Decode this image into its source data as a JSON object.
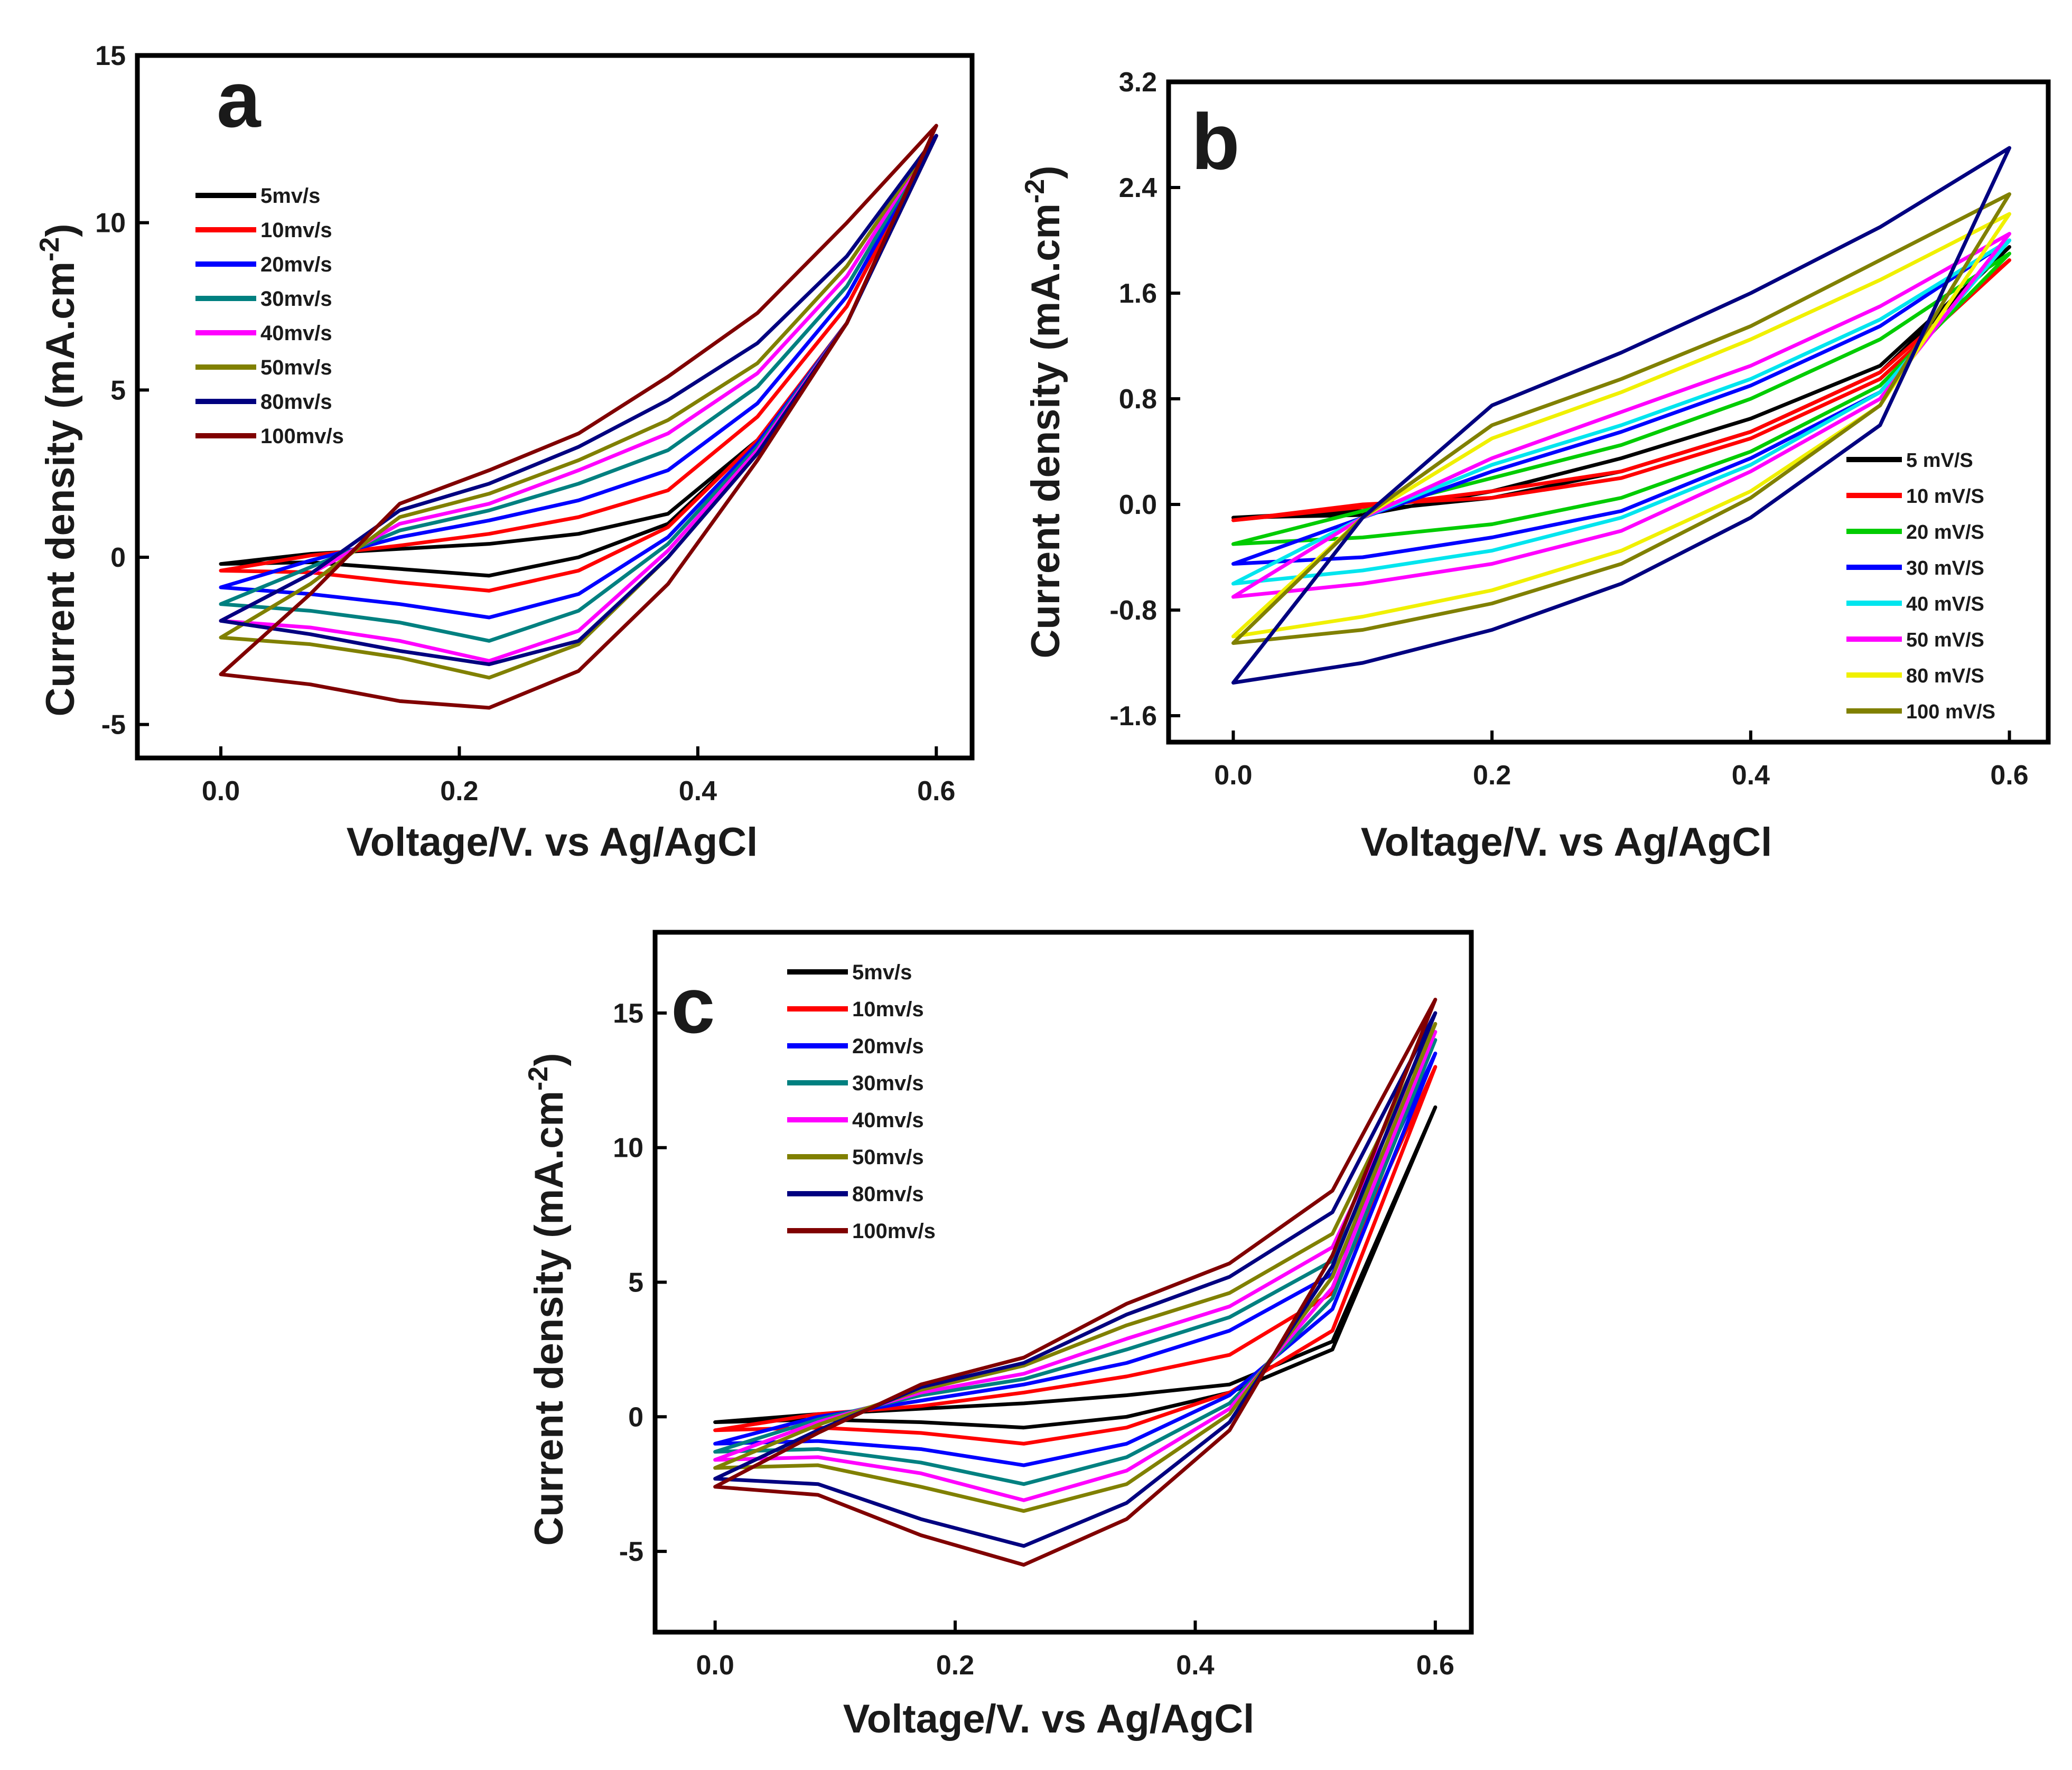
{
  "chart_data": [
    {
      "panel": "a",
      "type": "line",
      "subtype": "cyclic-voltammogram",
      "xlabel": "Voltage/V. vs Ag/AgCl",
      "ylabel_main": "Current density (mA.cm",
      "ylabel_sup": "-2",
      "ylabel_close": ")",
      "xlim": [
        -0.07,
        0.63
      ],
      "ylim": [
        -6,
        15
      ],
      "x_ticks": [
        "0.0",
        "0.2",
        "0.4",
        "0.6"
      ],
      "x_tick_values": [
        0,
        0.2,
        0.4,
        0.6
      ],
      "y_ticks": [
        "-5",
        "0",
        "5",
        "10",
        "15"
      ],
      "y_tick_values": [
        -5,
        0,
        5,
        10,
        15
      ],
      "legend_position": "top-left",
      "series": [
        {
          "name": "5mv/s",
          "color": "#000000",
          "y_lower": [
            -0.2,
            -0.15,
            -0.35,
            -0.55,
            0.0,
            1.0,
            3.5,
            7.0,
            12.6
          ],
          "y_upper": [
            -0.2,
            0.1,
            0.25,
            0.4,
            0.7,
            1.3,
            3.5,
            7.0,
            12.6
          ]
        },
        {
          "name": "10mv/s",
          "color": "#ff0000",
          "y_lower": [
            -0.4,
            -0.45,
            -0.75,
            -1.0,
            -0.4,
            0.9,
            3.5,
            7.0,
            12.6
          ],
          "y_upper": [
            -0.4,
            0.05,
            0.35,
            0.7,
            1.2,
            2.0,
            4.2,
            7.5,
            12.6
          ]
        },
        {
          "name": "20mv/s",
          "color": "#0000ff",
          "y_lower": [
            -0.9,
            -1.1,
            -1.4,
            -1.8,
            -1.1,
            0.6,
            3.4,
            7.0,
            12.6
          ],
          "y_upper": [
            -0.9,
            -0.1,
            0.6,
            1.1,
            1.7,
            2.6,
            4.6,
            7.8,
            12.6
          ]
        },
        {
          "name": "30mv/s",
          "color": "#008080",
          "y_lower": [
            -1.4,
            -1.6,
            -1.95,
            -2.5,
            -1.6,
            0.4,
            3.3,
            7.0,
            12.6
          ],
          "y_upper": [
            -1.4,
            -0.3,
            0.8,
            1.4,
            2.2,
            3.2,
            5.1,
            8.1,
            12.6
          ]
        },
        {
          "name": "40mv/s",
          "color": "#ff00ff",
          "y_lower": [
            -1.9,
            -2.1,
            -2.5,
            -3.1,
            -2.2,
            0.2,
            3.2,
            7.0,
            12.6
          ],
          "y_upper": [
            -1.9,
            -0.5,
            1.0,
            1.6,
            2.6,
            3.7,
            5.5,
            8.4,
            12.6
          ]
        },
        {
          "name": "50mv/s",
          "color": "#808000",
          "y_lower": [
            -2.4,
            -2.6,
            -3.0,
            -3.6,
            -2.6,
            0.0,
            3.1,
            7.0,
            12.6
          ],
          "y_upper": [
            -2.4,
            -0.8,
            1.2,
            1.9,
            2.9,
            4.1,
            5.8,
            8.7,
            12.6
          ]
        },
        {
          "name": "80mv/s",
          "color": "#000080",
          "y_lower": [
            -1.9,
            -2.3,
            -2.8,
            -3.2,
            -2.5,
            0.0,
            3.1,
            7.0,
            12.6
          ],
          "y_upper": [
            -1.9,
            -0.5,
            1.4,
            2.2,
            3.3,
            4.7,
            6.4,
            9.0,
            12.6
          ]
        },
        {
          "name": "100mv/s",
          "color": "#800000",
          "y_lower": [
            -3.5,
            -3.8,
            -4.3,
            -4.5,
            -3.4,
            -0.8,
            2.9,
            7.0,
            12.9
          ],
          "y_upper": [
            -3.5,
            -1.1,
            1.6,
            2.6,
            3.7,
            5.4,
            7.3,
            10.0,
            12.9
          ]
        }
      ]
    },
    {
      "panel": "b",
      "type": "line",
      "subtype": "cyclic-voltammogram",
      "xlabel": "Voltage/V. vs Ag/AgCl",
      "ylabel_main": "Current density (mA.cm",
      "ylabel_sup": "-2",
      "ylabel_close": ")",
      "xlim": [
        -0.05,
        0.63
      ],
      "ylim": [
        -1.8,
        3.2
      ],
      "x_ticks": [
        "0.0",
        "0.2",
        "0.4",
        "0.6"
      ],
      "x_tick_values": [
        0,
        0.2,
        0.4,
        0.6
      ],
      "y_ticks": [
        "-1.6",
        "-0.8",
        "0.0",
        "0.8",
        "1.6",
        "2.4",
        "3.2"
      ],
      "y_tick_values": [
        -1.6,
        -0.8,
        0.0,
        0.8,
        1.6,
        2.4,
        3.2
      ],
      "legend_position": "bottom-right",
      "series": [
        {
          "name": "5 mV/S",
          "color": "#000000",
          "y_lower": [
            -0.1,
            -0.05,
            0.05,
            0.25,
            0.55,
            1.0,
            1.95
          ],
          "y_upper": [
            -0.1,
            -0.08,
            0.1,
            0.35,
            0.65,
            1.05,
            1.95
          ]
        },
        {
          "name": "10 mV/S",
          "color": "#ff0000",
          "y_lower": [
            -0.12,
            -0.02,
            0.1,
            0.25,
            0.55,
            1.0,
            1.85
          ],
          "y_upper": [
            -0.12,
            0.0,
            0.05,
            0.2,
            0.5,
            0.95,
            1.85
          ]
        },
        {
          "name": "20 mV/S",
          "color": "#00cc00",
          "y_lower": [
            -0.3,
            -0.25,
            -0.15,
            0.05,
            0.4,
            0.9,
            1.9
          ],
          "y_upper": [
            -0.3,
            -0.05,
            0.2,
            0.45,
            0.8,
            1.25,
            1.9
          ]
        },
        {
          "name": "30 mV/S",
          "color": "#0000ff",
          "y_lower": [
            -0.45,
            -0.4,
            -0.25,
            -0.05,
            0.35,
            0.85,
            2.0
          ],
          "y_upper": [
            -0.45,
            -0.1,
            0.25,
            0.55,
            0.9,
            1.35,
            2.0
          ]
        },
        {
          "name": "40 mV/S",
          "color": "#00e5ee",
          "y_lower": [
            -0.6,
            -0.5,
            -0.35,
            -0.1,
            0.3,
            0.85,
            2.0
          ],
          "y_upper": [
            -0.6,
            -0.1,
            0.3,
            0.6,
            0.95,
            1.4,
            2.0
          ]
        },
        {
          "name": "50 mV/S",
          "color": "#ff00ff",
          "y_lower": [
            -0.7,
            -0.6,
            -0.45,
            -0.2,
            0.25,
            0.8,
            2.05
          ],
          "y_upper": [
            -0.7,
            -0.1,
            0.35,
            0.7,
            1.05,
            1.5,
            2.05
          ]
        },
        {
          "name": "80 mV/S",
          "color": "#f0f000",
          "y_lower": [
            -1.0,
            -0.85,
            -0.65,
            -0.35,
            0.1,
            0.75,
            2.2
          ],
          "y_upper": [
            -1.0,
            -0.1,
            0.5,
            0.85,
            1.25,
            1.7,
            2.2
          ]
        },
        {
          "name": "100 mV/S",
          "color": "#808000",
          "y_lower": [
            -1.05,
            -0.95,
            -0.75,
            -0.45,
            0.05,
            0.75,
            2.35
          ],
          "y_upper": [
            -1.05,
            -0.1,
            0.6,
            0.95,
            1.35,
            1.85,
            2.35
          ]
        },
        {
          "name": "",
          "color": "#000080",
          "y_lower": [
            -1.35,
            -1.2,
            -0.95,
            -0.6,
            -0.1,
            0.6,
            2.7
          ],
          "y_upper": [
            -1.35,
            -0.1,
            0.75,
            1.15,
            1.6,
            2.1,
            2.7
          ]
        }
      ]
    },
    {
      "panel": "c",
      "type": "line",
      "subtype": "cyclic-voltammogram",
      "xlabel": "Voltage/V. vs Ag/AgCl",
      "ylabel_main": "Current density (mA.cm",
      "ylabel_sup": "-2",
      "ylabel_close": ")",
      "xlim": [
        -0.05,
        0.63
      ],
      "ylim": [
        -8,
        18
      ],
      "x_ticks": [
        "0.0",
        "0.2",
        "0.4",
        "0.6"
      ],
      "x_tick_values": [
        0,
        0.2,
        0.4,
        0.6
      ],
      "y_ticks": [
        "-5",
        "0",
        "5",
        "10",
        "15"
      ],
      "y_tick_values": [
        -5,
        0,
        5,
        10,
        15
      ],
      "legend_position": "top-left",
      "series": [
        {
          "name": "5mv/s",
          "color": "#000000",
          "y_lower": [
            -0.2,
            -0.1,
            -0.2,
            -0.4,
            0.0,
            0.9,
            2.5,
            11.5
          ],
          "y_upper": [
            -0.2,
            0.1,
            0.3,
            0.5,
            0.8,
            1.2,
            2.8,
            11.5
          ]
        },
        {
          "name": "10mv/s",
          "color": "#ff0000",
          "y_lower": [
            -0.5,
            -0.4,
            -0.6,
            -1.0,
            -0.4,
            0.9,
            3.2,
            13.0
          ],
          "y_upper": [
            -0.5,
            0.1,
            0.4,
            0.9,
            1.5,
            2.3,
            4.6,
            13.0
          ]
        },
        {
          "name": "20mv/s",
          "color": "#0000ff",
          "y_lower": [
            -1.0,
            -0.9,
            -1.2,
            -1.8,
            -1.0,
            0.8,
            4.0,
            13.5
          ],
          "y_upper": [
            -1.0,
            0.0,
            0.6,
            1.2,
            2.0,
            3.2,
            5.3,
            13.5
          ]
        },
        {
          "name": "30mv/s",
          "color": "#008080",
          "y_lower": [
            -1.3,
            -1.2,
            -1.7,
            -2.5,
            -1.5,
            0.5,
            4.4,
            14.0
          ],
          "y_upper": [
            -1.3,
            -0.1,
            0.8,
            1.4,
            2.5,
            3.7,
            5.8,
            14.0
          ]
        },
        {
          "name": "40mv/s",
          "color": "#ff00ff",
          "y_lower": [
            -1.6,
            -1.5,
            -2.1,
            -3.1,
            -2.0,
            0.3,
            4.8,
            14.3
          ],
          "y_upper": [
            -1.6,
            -0.2,
            0.9,
            1.6,
            2.9,
            4.1,
            6.3,
            14.3
          ]
        },
        {
          "name": "50mv/s",
          "color": "#808000",
          "y_lower": [
            -1.9,
            -1.8,
            -2.6,
            -3.5,
            -2.5,
            0.1,
            5.2,
            14.6
          ],
          "y_upper": [
            -1.9,
            -0.3,
            1.0,
            1.9,
            3.4,
            4.6,
            6.8,
            14.6
          ]
        },
        {
          "name": "80mv/s",
          "color": "#000080",
          "y_lower": [
            -2.3,
            -2.5,
            -3.8,
            -4.8,
            -3.2,
            -0.2,
            5.6,
            15.0
          ],
          "y_upper": [
            -2.3,
            -0.5,
            1.1,
            2.0,
            3.8,
            5.2,
            7.6,
            15.0
          ]
        },
        {
          "name": "100mv/s",
          "color": "#800000",
          "y_lower": [
            -2.6,
            -2.9,
            -4.4,
            -5.5,
            -3.8,
            -0.5,
            6.0,
            15.5
          ],
          "y_upper": [
            -2.6,
            -0.6,
            1.2,
            2.2,
            4.2,
            5.7,
            8.4,
            15.5
          ]
        }
      ]
    }
  ]
}
